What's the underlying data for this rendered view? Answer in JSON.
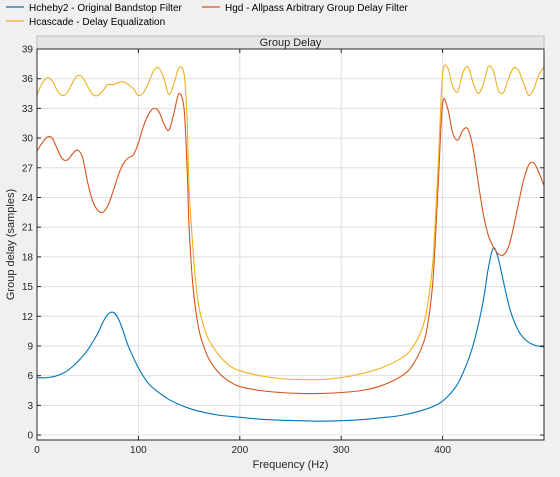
{
  "chart_data": {
    "type": "line",
    "title": "Group Delay",
    "xlabel": "Frequency (Hz)",
    "ylabel": "Group delay (samples)",
    "xlim": [
      0,
      500
    ],
    "ylim": [
      -0.5,
      39
    ],
    "xticks": [
      0,
      100,
      200,
      300,
      400
    ],
    "yticks": [
      0,
      3,
      6,
      9,
      12,
      15,
      18,
      21,
      24,
      27,
      30,
      33,
      36,
      39
    ],
    "grid": true,
    "legend": "top-left, outside plot",
    "series": [
      {
        "name": "Hcheby2 - Original Bandstop Filter",
        "color": "#0072BD",
        "x": [
          0,
          10,
          20,
          30,
          40,
          50,
          60,
          65,
          70,
          75,
          80,
          85,
          90,
          100,
          110,
          120,
          130,
          140,
          150,
          160,
          180,
          200,
          220,
          240,
          260,
          280,
          300,
          320,
          340,
          360,
          380,
          395,
          405,
          415,
          425,
          432,
          440,
          445,
          450,
          455,
          460,
          467,
          475,
          482,
          490,
          500
        ],
        "y": [
          5.8,
          5.8,
          6.0,
          6.5,
          7.4,
          8.6,
          10.3,
          11.4,
          12.2,
          12.4,
          11.8,
          10.5,
          9.0,
          6.8,
          5.2,
          4.3,
          3.6,
          3.1,
          2.7,
          2.4,
          2.0,
          1.8,
          1.6,
          1.5,
          1.45,
          1.4,
          1.45,
          1.55,
          1.75,
          2.0,
          2.5,
          3.1,
          3.9,
          5.2,
          7.5,
          9.8,
          13.5,
          16.8,
          18.9,
          17.8,
          15.5,
          12.5,
          10.5,
          9.6,
          9.1,
          8.9
        ]
      },
      {
        "name": "Hgd - Allpass Arbitrary Group Delay Filter",
        "color": "#D95319",
        "x": [
          0,
          5,
          10,
          15,
          20,
          25,
          30,
          35,
          40,
          45,
          50,
          55,
          60,
          65,
          70,
          75,
          80,
          85,
          90,
          95,
          100,
          105,
          110,
          115,
          120,
          125,
          130,
          135,
          140,
          145,
          148,
          150,
          153,
          156,
          160,
          165,
          170,
          180,
          190,
          200,
          220,
          240,
          260,
          280,
          300,
          320,
          340,
          360,
          370,
          380,
          385,
          390,
          393,
          396,
          400,
          405,
          410,
          415,
          420,
          425,
          430,
          435,
          440,
          445,
          450,
          455,
          460,
          465,
          470,
          475,
          480,
          485,
          490,
          495,
          500
        ],
        "y": [
          28.7,
          29.5,
          30.1,
          30.0,
          28.9,
          27.9,
          27.8,
          28.4,
          28.8,
          28.0,
          25.5,
          23.6,
          22.7,
          22.5,
          23.2,
          24.6,
          26.2,
          27.4,
          28.0,
          28.3,
          29.5,
          31.2,
          32.4,
          33.0,
          32.7,
          31.5,
          30.8,
          32.5,
          34.5,
          33.0,
          27.0,
          21.0,
          16.0,
          13.0,
          10.5,
          8.8,
          7.6,
          6.2,
          5.4,
          4.9,
          4.5,
          4.3,
          4.2,
          4.2,
          4.3,
          4.5,
          5.0,
          6.0,
          7.0,
          9.0,
          11.0,
          15.0,
          20.0,
          26.0,
          33.5,
          33.0,
          30.5,
          29.8,
          30.8,
          30.9,
          29.0,
          25.6,
          22.4,
          20.2,
          19.0,
          18.3,
          18.2,
          19.0,
          21.0,
          23.5,
          25.8,
          27.3,
          27.5,
          26.5,
          25.2
        ]
      },
      {
        "name": "Hcascade - Delay Equalization",
        "color": "#EDB120",
        "x": [
          0,
          5,
          10,
          15,
          20,
          25,
          30,
          35,
          40,
          45,
          50,
          55,
          60,
          65,
          70,
          75,
          80,
          85,
          90,
          95,
          100,
          105,
          110,
          115,
          120,
          125,
          130,
          135,
          140,
          145,
          148,
          150,
          153,
          156,
          160,
          165,
          170,
          180,
          190,
          200,
          220,
          240,
          260,
          280,
          300,
          320,
          340,
          360,
          370,
          380,
          385,
          390,
          393,
          396,
          400,
          405,
          410,
          415,
          420,
          425,
          430,
          435,
          440,
          445,
          450,
          455,
          460,
          465,
          470,
          475,
          480,
          485,
          490,
          495,
          500
        ],
        "y": [
          34.4,
          35.5,
          36.1,
          35.8,
          34.8,
          34.3,
          34.6,
          35.6,
          36.3,
          36.1,
          35.2,
          34.4,
          34.3,
          34.8,
          35.4,
          35.4,
          35.6,
          35.7,
          35.4,
          35.0,
          34.3,
          34.6,
          35.6,
          36.8,
          37.1,
          36.1,
          34.4,
          35.5,
          37.1,
          36.5,
          32.0,
          25.0,
          20.0,
          16.0,
          12.8,
          10.8,
          9.5,
          8.0,
          7.0,
          6.5,
          6.0,
          5.7,
          5.6,
          5.6,
          5.8,
          6.2,
          6.8,
          7.8,
          8.8,
          10.8,
          13.0,
          17.0,
          22.0,
          28.0,
          36.4,
          37.1,
          35.2,
          34.7,
          36.6,
          37.2,
          35.6,
          34.5,
          35.4,
          37.2,
          36.8,
          34.8,
          34.6,
          36.0,
          37.1,
          36.8,
          35.5,
          34.3,
          35.0,
          36.4,
          37.2
        ]
      }
    ]
  }
}
